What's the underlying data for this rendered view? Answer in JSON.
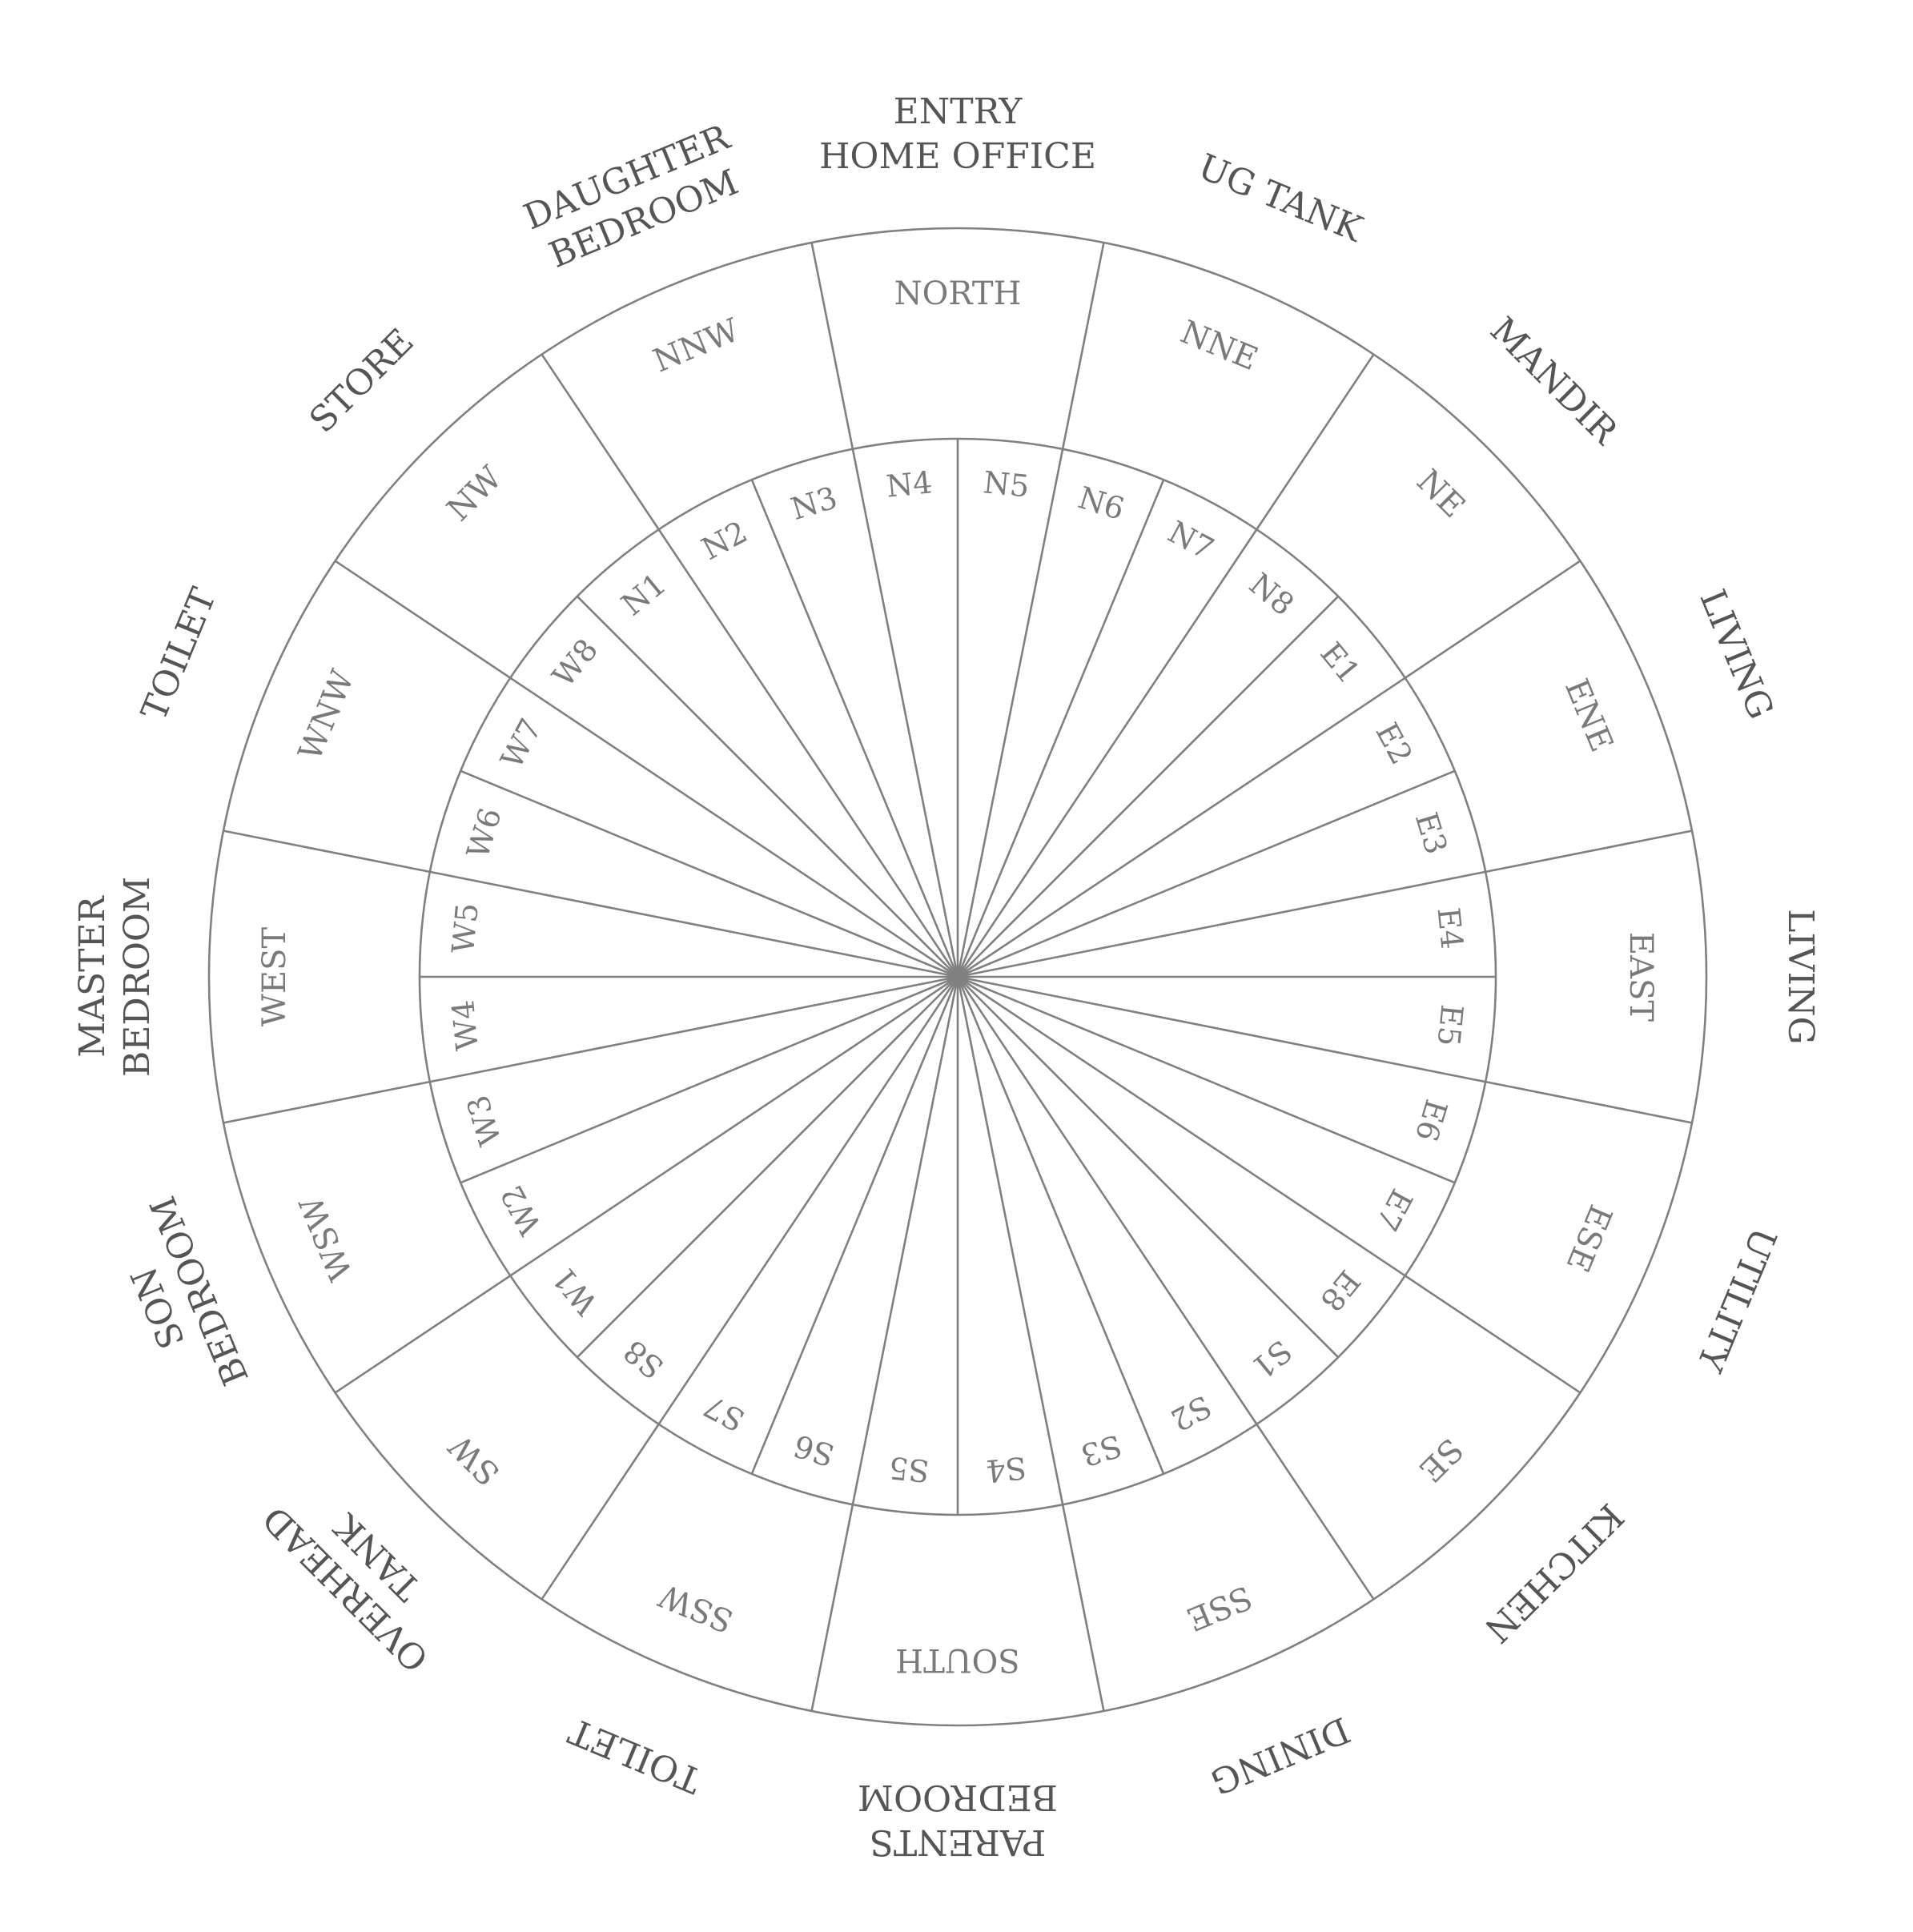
{
  "colors": {
    "line": "#808080",
    "room_text": "#555555",
    "label_text": "#7a7a7a",
    "background": "#ffffff"
  },
  "directions": [
    "NORTH",
    "NNE",
    "NE",
    "ENE",
    "EAST",
    "ESE",
    "SE",
    "SSE",
    "SOUTH",
    "SSW",
    "SW",
    "WSW",
    "WEST",
    "WNW",
    "NW",
    "NNW"
  ],
  "rooms": [
    [
      "ENTRY",
      "HOME OFFICE"
    ],
    [
      "UG TANK"
    ],
    [
      "MANDIR"
    ],
    [
      "LIVING"
    ],
    [
      "LIVING"
    ],
    [
      "UTILITY"
    ],
    [
      "KITCHEN"
    ],
    [
      "DINING"
    ],
    [
      "PARENTS",
      "BEDROOM"
    ],
    [
      "TOILET"
    ],
    [
      "OVERHEAD",
      "TANK"
    ],
    [
      "SON",
      "BEDROOM"
    ],
    [
      "MASTER",
      "BEDROOM"
    ],
    [
      "TOILET"
    ],
    [
      "STORE"
    ],
    [
      "DAUGHTER",
      "BEDROOM"
    ]
  ],
  "padas": [
    "N5",
    "N6",
    "N7",
    "N8",
    "E1",
    "E2",
    "E3",
    "E4",
    "E5",
    "E6",
    "E7",
    "E8",
    "S1",
    "S2",
    "S3",
    "S4",
    "S5",
    "S6",
    "S7",
    "S8",
    "W1",
    "W2",
    "W3",
    "W4",
    "W5",
    "W6",
    "W7",
    "W8",
    "N1",
    "N2",
    "N3",
    "N4"
  ]
}
